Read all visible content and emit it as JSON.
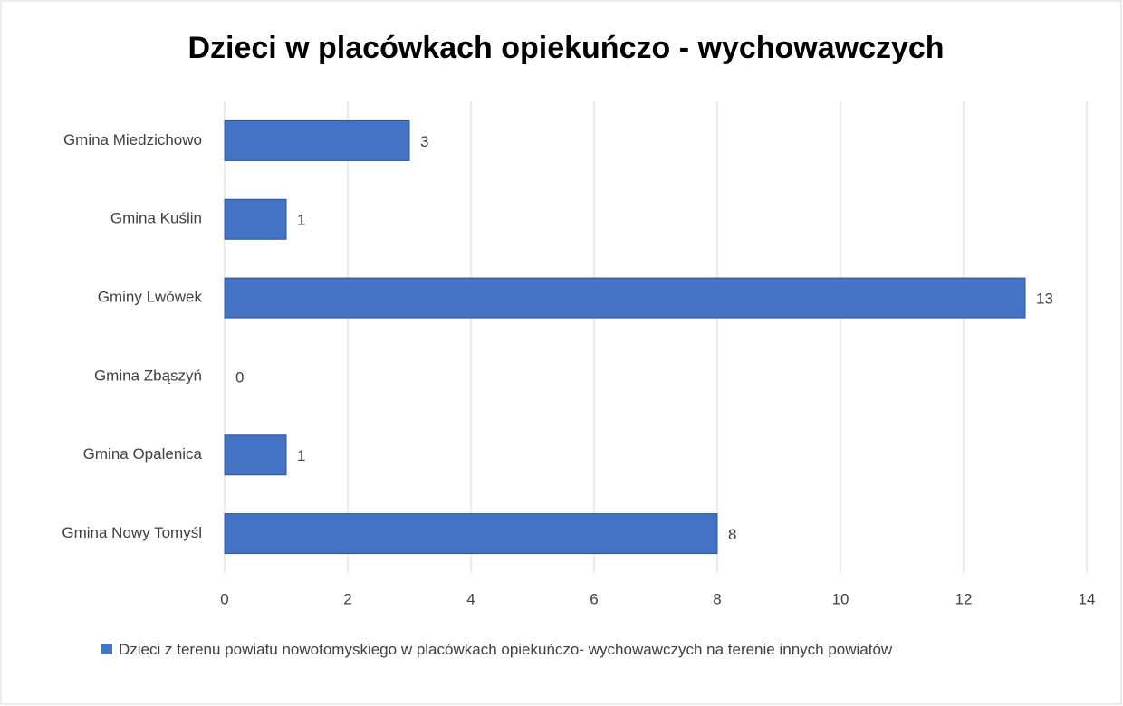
{
  "chart_data": {
    "type": "bar",
    "orientation": "horizontal",
    "title": "Dzieci w placówkach opiekuńczo - wychowawczych",
    "categories": [
      "Gmina Miedzichowo",
      "Gmina Kuślin",
      "Gminy Lwówek",
      "Gmina Zbąszyń",
      "Gmina Opalenica",
      "Gmina Nowy Tomyśl"
    ],
    "series": [
      {
        "name": "Dzieci z terenu powiatu nowotomyskiego w placówkach opiekuńczo- wychowawczych na terenie innych powiatów",
        "color": "#4472c4",
        "values": [
          3,
          1,
          13,
          0,
          1,
          8
        ]
      }
    ],
    "xlim": [
      0,
      14
    ],
    "xticks": [
      0,
      2,
      4,
      6,
      8,
      10,
      12,
      14
    ],
    "grid": true,
    "legend": "bottom"
  }
}
